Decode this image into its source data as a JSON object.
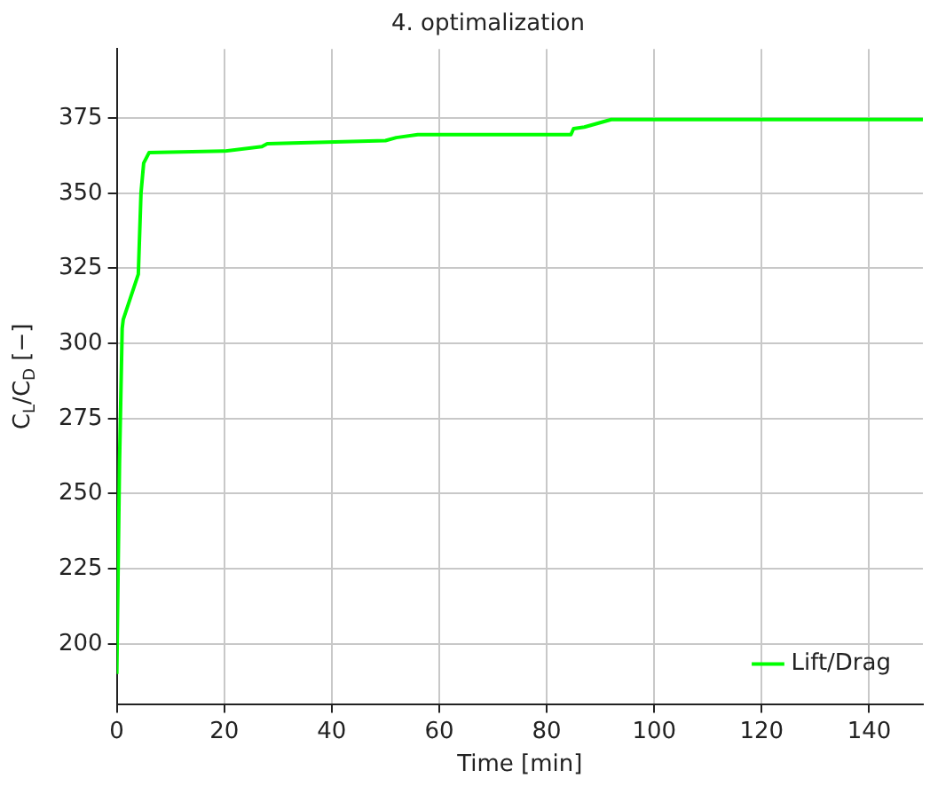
{
  "chart_data": {
    "type": "line",
    "title": "4. optimalization",
    "xlabel": "Time [min]",
    "ylabel": "C$_{L}$/C$_{D}$ [−]",
    "x": [
      0,
      0.5,
      1,
      1.2,
      4,
      4.5,
      5,
      6,
      20,
      27,
      28,
      50,
      52,
      56,
      84.5,
      85,
      87,
      92,
      150
    ],
    "series": [
      {
        "name": "Lift/Drag",
        "color": "#00ff00",
        "values": [
          190,
          260,
          305,
          308,
          323,
          350,
          360,
          363.5,
          364,
          365.5,
          366.5,
          367.5,
          368.5,
          369.5,
          369.5,
          371.5,
          372,
          374.5,
          374.5
        ]
      }
    ],
    "xlim": [
      0,
      150
    ],
    "xticks": [
      0,
      20,
      40,
      60,
      80,
      100,
      120,
      140
    ],
    "ylim": [
      180,
      398
    ],
    "yticks": [
      200,
      225,
      250,
      275,
      300,
      325,
      350,
      375
    ],
    "grid": true,
    "legend": "bottom right",
    "marker": "none",
    "line_style": "solid"
  }
}
